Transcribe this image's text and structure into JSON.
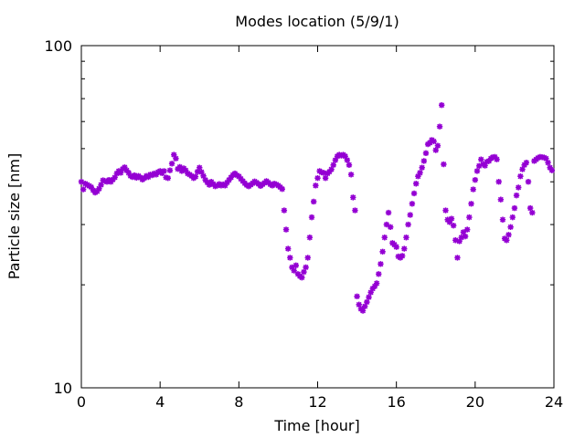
{
  "chart_data": {
    "type": "scatter",
    "title": "Modes location (5/9/1)",
    "xlabel": "Time [hour]",
    "ylabel": "Particle size [nm]",
    "xlim": [
      0,
      24
    ],
    "ylim": [
      10,
      100
    ],
    "y_scale": "log",
    "x_ticks": [
      0,
      4,
      8,
      12,
      16,
      20,
      24
    ],
    "x_tick_labels": [
      "0",
      "4",
      "8",
      "12",
      "16",
      "20",
      "24"
    ],
    "y_ticks": [
      10,
      100
    ],
    "y_tick_labels": [
      "10",
      "100"
    ],
    "grid": false,
    "marker": "asterisk",
    "color": "#9400d3",
    "series": [
      {
        "points": [
          [
            0.0,
            40.0
          ],
          [
            0.1,
            38.0
          ],
          [
            0.2,
            39.5
          ],
          [
            0.3,
            39.2
          ],
          [
            0.4,
            38.9
          ],
          [
            0.5,
            38.6
          ],
          [
            0.6,
            37.8
          ],
          [
            0.7,
            37.2
          ],
          [
            0.8,
            37.5
          ],
          [
            0.9,
            38.2
          ],
          [
            1.0,
            39.2
          ],
          [
            1.1,
            40.4
          ],
          [
            1.2,
            40.2
          ],
          [
            1.3,
            40.0
          ],
          [
            1.4,
            40.5
          ],
          [
            1.5,
            40.0
          ],
          [
            1.6,
            40.6
          ],
          [
            1.7,
            41.2
          ],
          [
            1.8,
            42.3
          ],
          [
            1.9,
            43.0
          ],
          [
            2.0,
            42.5
          ],
          [
            2.1,
            43.6
          ],
          [
            2.2,
            44.1
          ],
          [
            2.3,
            43.2
          ],
          [
            2.4,
            42.5
          ],
          [
            2.5,
            41.6
          ],
          [
            2.6,
            41.3
          ],
          [
            2.7,
            41.8
          ],
          [
            2.8,
            41.1
          ],
          [
            2.9,
            41.6
          ],
          [
            3.0,
            41.2
          ],
          [
            3.1,
            40.6
          ],
          [
            3.2,
            41.0
          ],
          [
            3.3,
            41.6
          ],
          [
            3.4,
            41.3
          ],
          [
            3.5,
            42.0
          ],
          [
            3.6,
            41.8
          ],
          [
            3.7,
            42.3
          ],
          [
            3.8,
            42.0
          ],
          [
            3.9,
            42.7
          ],
          [
            4.0,
            43.0
          ],
          [
            4.1,
            42.4
          ],
          [
            4.2,
            43.0
          ],
          [
            4.3,
            41.2
          ],
          [
            4.4,
            41.0
          ],
          [
            4.5,
            43.2
          ],
          [
            4.6,
            45.2
          ],
          [
            4.7,
            48.0
          ],
          [
            4.8,
            46.8
          ],
          [
            4.9,
            43.6
          ],
          [
            5.0,
            44.2
          ],
          [
            5.1,
            43.0
          ],
          [
            5.2,
            43.8
          ],
          [
            5.3,
            43.2
          ],
          [
            5.4,
            42.3
          ],
          [
            5.5,
            42.0
          ],
          [
            5.6,
            41.6
          ],
          [
            5.7,
            41.0
          ],
          [
            5.8,
            41.4
          ],
          [
            5.9,
            42.8
          ],
          [
            6.0,
            44.0
          ],
          [
            6.1,
            42.7
          ],
          [
            6.2,
            41.6
          ],
          [
            6.3,
            40.5
          ],
          [
            6.4,
            39.8
          ],
          [
            6.5,
            39.2
          ],
          [
            6.6,
            40.0
          ],
          [
            6.7,
            39.4
          ],
          [
            6.8,
            38.8
          ],
          [
            6.9,
            39.0
          ],
          [
            7.0,
            39.4
          ],
          [
            7.1,
            39.0
          ],
          [
            7.2,
            39.3
          ],
          [
            7.3,
            39.0
          ],
          [
            7.4,
            39.8
          ],
          [
            7.5,
            40.5
          ],
          [
            7.6,
            41.2
          ],
          [
            7.7,
            41.9
          ],
          [
            7.8,
            42.3
          ],
          [
            7.9,
            41.8
          ],
          [
            8.0,
            41.5
          ],
          [
            8.1,
            40.8
          ],
          [
            8.2,
            40.2
          ],
          [
            8.3,
            39.6
          ],
          [
            8.4,
            39.1
          ],
          [
            8.5,
            38.8
          ],
          [
            8.6,
            39.2
          ],
          [
            8.7,
            39.6
          ],
          [
            8.8,
            40.1
          ],
          [
            8.9,
            39.8
          ],
          [
            9.0,
            39.4
          ],
          [
            9.1,
            38.9
          ],
          [
            9.2,
            39.3
          ],
          [
            9.3,
            39.7
          ],
          [
            9.4,
            40.2
          ],
          [
            9.5,
            39.8
          ],
          [
            9.6,
            39.3
          ],
          [
            9.7,
            39.0
          ],
          [
            9.8,
            39.5
          ],
          [
            9.9,
            39.3
          ],
          [
            10.0,
            39.0
          ],
          [
            10.1,
            38.6
          ],
          [
            10.2,
            38.1
          ],
          [
            10.3,
            33.0
          ],
          [
            10.4,
            29.0
          ],
          [
            10.5,
            25.5
          ],
          [
            10.6,
            24.0
          ],
          [
            10.7,
            22.5
          ],
          [
            10.8,
            22.0
          ],
          [
            10.9,
            22.8
          ],
          [
            11.0,
            21.5
          ],
          [
            11.1,
            21.2
          ],
          [
            11.2,
            21.0
          ],
          [
            11.3,
            21.8
          ],
          [
            11.4,
            22.5
          ],
          [
            11.5,
            24.0
          ],
          [
            11.6,
            27.5
          ],
          [
            11.7,
            31.5
          ],
          [
            11.8,
            35.0
          ],
          [
            11.9,
            39.0
          ],
          [
            12.0,
            41.0
          ],
          [
            12.1,
            43.0
          ],
          [
            12.2,
            42.6
          ],
          [
            12.3,
            42.5
          ],
          [
            12.4,
            41.0
          ],
          [
            12.5,
            42.3
          ],
          [
            12.6,
            42.8
          ],
          [
            12.7,
            43.5
          ],
          [
            12.8,
            44.8
          ],
          [
            12.9,
            46.3
          ],
          [
            13.0,
            47.5
          ],
          [
            13.1,
            48.0
          ],
          [
            13.2,
            47.7
          ],
          [
            13.3,
            48.0
          ],
          [
            13.4,
            47.5
          ],
          [
            13.5,
            46.3
          ],
          [
            13.6,
            44.8
          ],
          [
            13.7,
            42.0
          ],
          [
            13.8,
            36.0
          ],
          [
            13.9,
            33.0
          ],
          [
            14.0,
            18.5
          ],
          [
            14.1,
            17.5
          ],
          [
            14.2,
            17.0
          ],
          [
            14.3,
            16.8
          ],
          [
            14.4,
            17.3
          ],
          [
            14.5,
            17.8
          ],
          [
            14.6,
            18.4
          ],
          [
            14.7,
            19.0
          ],
          [
            14.8,
            19.5
          ],
          [
            14.9,
            19.8
          ],
          [
            15.0,
            20.2
          ],
          [
            15.1,
            21.5
          ],
          [
            15.2,
            23.0
          ],
          [
            15.3,
            25.0
          ],
          [
            15.4,
            27.5
          ],
          [
            15.5,
            30.0
          ],
          [
            15.6,
            32.5
          ],
          [
            15.7,
            29.5
          ],
          [
            15.8,
            26.5
          ],
          [
            15.9,
            26.2
          ],
          [
            16.0,
            25.8
          ],
          [
            16.1,
            24.2
          ],
          [
            16.2,
            24.0
          ],
          [
            16.3,
            24.3
          ],
          [
            16.4,
            25.5
          ],
          [
            16.5,
            27.5
          ],
          [
            16.6,
            30.0
          ],
          [
            16.7,
            32.0
          ],
          [
            16.8,
            34.5
          ],
          [
            16.9,
            37.0
          ],
          [
            17.0,
            39.5
          ],
          [
            17.1,
            41.5
          ],
          [
            17.2,
            42.5
          ],
          [
            17.3,
            44.0
          ],
          [
            17.4,
            46.0
          ],
          [
            17.5,
            48.5
          ],
          [
            17.6,
            51.5
          ],
          [
            17.7,
            52.0
          ],
          [
            17.8,
            53.0
          ],
          [
            17.9,
            52.5
          ],
          [
            18.0,
            49.5
          ],
          [
            18.1,
            51.0
          ],
          [
            18.2,
            58.0
          ],
          [
            18.3,
            67.0
          ],
          [
            18.4,
            45.0
          ],
          [
            18.5,
            33.0
          ],
          [
            18.6,
            31.0
          ],
          [
            18.7,
            30.5
          ],
          [
            18.8,
            31.2
          ],
          [
            18.9,
            29.8
          ],
          [
            19.0,
            27.0
          ],
          [
            19.1,
            24.0
          ],
          [
            19.2,
            26.8
          ],
          [
            19.3,
            27.5
          ],
          [
            19.4,
            28.5
          ],
          [
            19.5,
            27.7
          ],
          [
            19.6,
            29.0
          ],
          [
            19.7,
            31.5
          ],
          [
            19.8,
            34.5
          ],
          [
            19.9,
            38.0
          ],
          [
            20.0,
            40.5
          ],
          [
            20.1,
            43.0
          ],
          [
            20.2,
            44.5
          ],
          [
            20.3,
            46.5
          ],
          [
            20.4,
            45.0
          ],
          [
            20.5,
            44.6
          ],
          [
            20.6,
            45.8
          ],
          [
            20.7,
            46.0
          ],
          [
            20.8,
            46.8
          ],
          [
            20.9,
            47.2
          ],
          [
            21.0,
            47.3
          ],
          [
            21.1,
            46.5
          ],
          [
            21.2,
            40.0
          ],
          [
            21.3,
            35.5
          ],
          [
            21.4,
            31.0
          ],
          [
            21.5,
            27.3
          ],
          [
            21.6,
            27.0
          ],
          [
            21.7,
            28.0
          ],
          [
            21.8,
            29.5
          ],
          [
            21.9,
            31.5
          ],
          [
            22.0,
            33.5
          ],
          [
            22.1,
            36.5
          ],
          [
            22.2,
            38.5
          ],
          [
            22.3,
            41.5
          ],
          [
            22.4,
            43.5
          ],
          [
            22.5,
            44.8
          ],
          [
            22.6,
            45.5
          ],
          [
            22.7,
            40.0
          ],
          [
            22.8,
            33.5
          ],
          [
            22.9,
            32.5
          ],
          [
            23.0,
            46.0
          ],
          [
            23.1,
            46.5
          ],
          [
            23.2,
            47.0
          ],
          [
            23.3,
            47.3
          ],
          [
            23.4,
            47.2
          ],
          [
            23.5,
            47.1
          ],
          [
            23.6,
            46.8
          ],
          [
            23.7,
            45.5
          ],
          [
            23.8,
            44.0
          ],
          [
            23.9,
            43.2
          ]
        ]
      }
    ]
  }
}
